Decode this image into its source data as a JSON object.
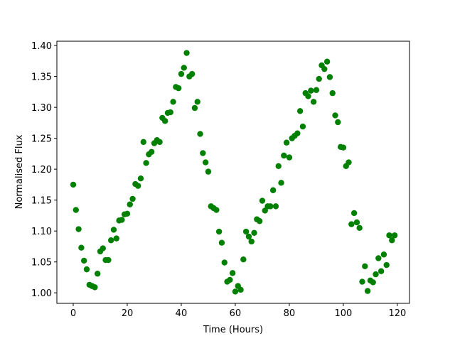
{
  "chart_data": {
    "type": "scatter",
    "x_label": "Time (Hours)",
    "y_label": "Normalised Flux",
    "color": "#008000",
    "x": [
      0,
      1,
      2,
      3,
      4,
      5,
      6,
      7,
      8,
      9,
      10,
      11,
      12,
      13,
      14,
      15,
      16,
      17,
      18,
      19,
      20,
      21,
      22,
      23,
      24,
      25,
      26,
      27,
      28,
      29,
      30,
      31,
      32,
      33,
      34,
      35,
      36,
      37,
      38,
      39,
      40,
      41,
      42,
      43,
      44,
      45,
      46,
      47,
      48,
      49,
      50,
      51,
      52,
      53,
      54,
      55,
      56,
      57,
      58,
      59,
      60,
      61,
      62,
      63,
      64,
      65,
      66,
      67,
      68,
      69,
      70,
      71,
      72,
      73,
      74,
      75,
      76,
      77,
      78,
      79,
      80,
      81,
      82,
      83,
      84,
      85,
      86,
      87,
      88,
      89,
      90,
      91,
      92,
      93,
      94,
      95,
      96,
      97,
      98,
      99,
      100,
      101,
      102,
      103,
      104,
      105,
      106,
      107,
      108,
      109,
      110,
      111,
      112,
      113,
      114,
      115,
      116,
      117,
      118,
      119
    ],
    "values": [
      1.175,
      1.134,
      1.103,
      1.073,
      1.052,
      1.038,
      1.013,
      1.011,
      1.009,
      1.031,
      1.067,
      1.072,
      1.053,
      1.053,
      1.085,
      1.102,
      1.088,
      1.117,
      1.118,
      1.127,
      1.128,
      1.143,
      1.152,
      1.176,
      1.173,
      1.185,
      1.244,
      1.21,
      1.224,
      1.228,
      1.242,
      1.247,
      1.244,
      1.283,
      1.278,
      1.291,
      1.292,
      1.309,
      1.333,
      1.331,
      1.354,
      1.364,
      1.388,
      1.35,
      1.354,
      1.299,
      1.309,
      1.257,
      1.226,
      1.211,
      1.196,
      1.14,
      1.137,
      1.134,
      1.099,
      1.081,
      1.049,
      1.018,
      1.021,
      1.032,
      1.002,
      1.011,
      1.005,
      1.054,
      1.099,
      1.091,
      1.083,
      1.097,
      1.119,
      1.116,
      1.149,
      1.133,
      1.14,
      1.14,
      1.166,
      1.14,
      1.205,
      1.178,
      1.222,
      1.243,
      1.219,
      1.25,
      1.254,
      1.258,
      1.294,
      1.269,
      1.323,
      1.318,
      1.327,
      1.309,
      1.328,
      1.346,
      1.368,
      1.362,
      1.374,
      1.349,
      1.323,
      1.287,
      1.276,
      1.236,
      1.235,
      1.205,
      1.211,
      1.111,
      1.129,
      1.114,
      1.105,
      1.018,
      1.043,
      1.003,
      1.02,
      1.017,
      1.03,
      1.056,
      1.035,
      1.062,
      1.045,
      1.093,
      1.085,
      1.093
    ],
    "xlim": [
      -6.05,
      124.5
    ],
    "ylim": [
      0.983,
      1.407
    ],
    "xticks": [
      0,
      20,
      40,
      60,
      80,
      100,
      120
    ],
    "yticks": [
      {
        "value": 1.0,
        "label": "1.00"
      },
      1.05,
      {
        "value": 1.1,
        "label": "1.10"
      },
      1.15,
      {
        "value": 1.2,
        "label": "1.20"
      },
      1.25,
      {
        "value": 1.3,
        "label": "1.30"
      },
      1.35,
      {
        "value": 1.4,
        "label": "1.40"
      }
    ]
  }
}
